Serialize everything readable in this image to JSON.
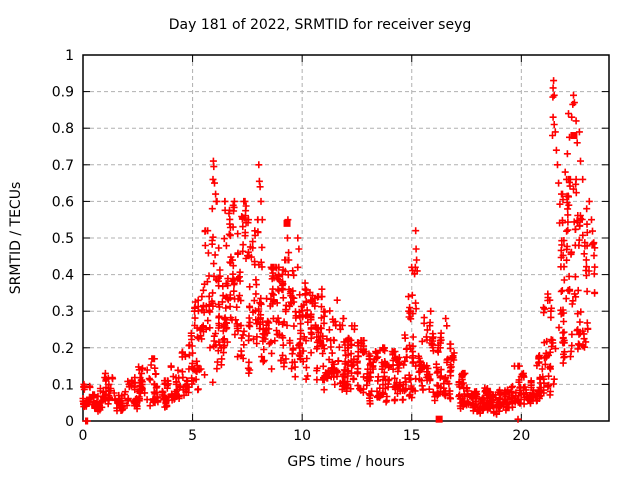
{
  "window": {
    "background": "#ffffff",
    "foreground": "#000000"
  },
  "chart_data": {
    "type": "scatter",
    "title": "Day 181 of 2022, SRMTID for receiver seyg",
    "xlabel": "GPS time / hours",
    "ylabel": "SRMTID / TECUs",
    "xlim": [
      0,
      24
    ],
    "ylim": [
      0,
      1
    ],
    "xticks": [
      0,
      5,
      10,
      15,
      20
    ],
    "xtick_labels": [
      "0",
      "5",
      "10",
      "15",
      "20"
    ],
    "yticks": [
      0,
      0.1,
      0.2,
      0.3,
      0.4,
      0.5,
      0.6,
      0.7,
      0.8,
      0.9,
      1
    ],
    "ytick_labels": [
      "0",
      "0.1",
      "0.2",
      "0.3",
      "0.4",
      "0.5",
      "0.6",
      "0.7",
      "0.8",
      "0.9",
      "1"
    ],
    "grid": true,
    "legend": "none",
    "marker": "plus",
    "marker_color": "#ff0000",
    "grid_color": "#b0b0b0",
    "bins_format": [
      "hour_start",
      "hour_end",
      "count",
      "y_min",
      "y_max",
      "skew_toward_min"
    ],
    "bins": [
      [
        0.0,
        0.5,
        30,
        0.04,
        0.1,
        1.5
      ],
      [
        0.5,
        1.0,
        30,
        0.03,
        0.09,
        1.5
      ],
      [
        1.0,
        1.5,
        30,
        0.05,
        0.13,
        1.5
      ],
      [
        1.5,
        2.0,
        28,
        0.03,
        0.08,
        1.5
      ],
      [
        2.0,
        2.5,
        30,
        0.04,
        0.12,
        1.5
      ],
      [
        2.5,
        3.0,
        30,
        0.05,
        0.15,
        1.5
      ],
      [
        3.0,
        3.5,
        30,
        0.05,
        0.17,
        1.8
      ],
      [
        3.5,
        4.0,
        28,
        0.04,
        0.11,
        1.5
      ],
      [
        4.0,
        4.5,
        30,
        0.06,
        0.15,
        1.5
      ],
      [
        4.5,
        5.0,
        32,
        0.07,
        0.24,
        1.6
      ],
      [
        5.0,
        5.5,
        34,
        0.1,
        0.34,
        1.4
      ],
      [
        5.5,
        6.0,
        36,
        0.12,
        0.52,
        1.5
      ],
      [
        6.0,
        6.5,
        46,
        0.16,
        0.6,
        1.2
      ],
      [
        6.5,
        7.0,
        46,
        0.22,
        0.6,
        1.1
      ],
      [
        7.0,
        7.5,
        42,
        0.18,
        0.6,
        1.3
      ],
      [
        7.5,
        8.0,
        42,
        0.16,
        0.55,
        1.3
      ],
      [
        8.0,
        8.5,
        40,
        0.15,
        0.48,
        1.2
      ],
      [
        8.5,
        9.0,
        40,
        0.13,
        0.42,
        1.2
      ],
      [
        9.0,
        9.5,
        40,
        0.15,
        0.44,
        1.2
      ],
      [
        9.5,
        10.0,
        40,
        0.13,
        0.42,
        1.3
      ],
      [
        10.0,
        10.5,
        40,
        0.12,
        0.38,
        1.3
      ],
      [
        10.5,
        11.0,
        40,
        0.1,
        0.34,
        1.3
      ],
      [
        11.0,
        11.5,
        40,
        0.1,
        0.31,
        1.3
      ],
      [
        11.5,
        12.0,
        38,
        0.09,
        0.28,
        1.3
      ],
      [
        12.0,
        12.5,
        38,
        0.08,
        0.26,
        1.3
      ],
      [
        12.5,
        13.0,
        38,
        0.07,
        0.22,
        1.3
      ],
      [
        13.0,
        13.5,
        36,
        0.05,
        0.19,
        1.3
      ],
      [
        13.5,
        14.0,
        36,
        0.06,
        0.2,
        1.4
      ],
      [
        14.0,
        14.5,
        34,
        0.05,
        0.19,
        1.4
      ],
      [
        14.5,
        15.0,
        34,
        0.06,
        0.3,
        1.6
      ],
      [
        15.0,
        15.5,
        34,
        0.08,
        0.42,
        1.8
      ],
      [
        15.5,
        16.0,
        34,
        0.08,
        0.3,
        1.5
      ],
      [
        16.0,
        16.5,
        34,
        0.06,
        0.24,
        1.5
      ],
      [
        16.5,
        17.0,
        34,
        0.06,
        0.21,
        1.5
      ],
      [
        17.0,
        17.5,
        34,
        0.04,
        0.13,
        1.4
      ],
      [
        17.5,
        18.0,
        36,
        0.03,
        0.1,
        1.4
      ],
      [
        18.0,
        18.5,
        38,
        0.02,
        0.09,
        1.4
      ],
      [
        18.5,
        19.0,
        38,
        0.02,
        0.08,
        1.4
      ],
      [
        19.0,
        19.5,
        38,
        0.03,
        0.09,
        1.4
      ],
      [
        19.5,
        20.0,
        34,
        0.04,
        0.15,
        1.6
      ],
      [
        20.0,
        20.5,
        34,
        0.05,
        0.13,
        1.5
      ],
      [
        20.5,
        21.0,
        34,
        0.06,
        0.18,
        1.5
      ],
      [
        21.0,
        21.5,
        36,
        0.08,
        0.35,
        1.6
      ],
      [
        21.5,
        22.0,
        40,
        0.15,
        0.62,
        1.2
      ],
      [
        22.0,
        22.5,
        44,
        0.2,
        0.66,
        1.2
      ],
      [
        22.5,
        23.0,
        40,
        0.17,
        0.58,
        1.3
      ],
      [
        23.0,
        23.4,
        16,
        0.22,
        0.55,
        1.2
      ]
    ],
    "spikes": [
      [
        5.95,
        0.71
      ],
      [
        5.97,
        0.695
      ],
      [
        5.93,
        0.66
      ],
      [
        6.0,
        0.65
      ],
      [
        6.05,
        0.62
      ],
      [
        5.9,
        0.58
      ],
      [
        8.02,
        0.7
      ],
      [
        8.05,
        0.655
      ],
      [
        8.08,
        0.64
      ],
      [
        8.12,
        0.6
      ],
      [
        8.18,
        0.55
      ],
      [
        9.35,
        0.55
      ],
      [
        9.33,
        0.5
      ],
      [
        9.38,
        0.46
      ],
      [
        9.8,
        0.5
      ],
      [
        9.85,
        0.47
      ],
      [
        10.9,
        0.36
      ],
      [
        11.6,
        0.33
      ],
      [
        14.85,
        0.34
      ],
      [
        14.9,
        0.31
      ],
      [
        15.18,
        0.52
      ],
      [
        15.2,
        0.47
      ],
      [
        15.22,
        0.44
      ],
      [
        15.25,
        0.41
      ],
      [
        16.55,
        0.28
      ],
      [
        16.6,
        0.26
      ],
      [
        19.85,
        0.15
      ],
      [
        21.3,
        0.33
      ],
      [
        21.35,
        0.3
      ],
      [
        21.47,
        0.93
      ],
      [
        21.45,
        0.91
      ],
      [
        21.5,
        0.89
      ],
      [
        21.44,
        0.885
      ],
      [
        22.38,
        0.89
      ],
      [
        22.42,
        0.87
      ],
      [
        22.35,
        0.865
      ],
      [
        22.15,
        0.84
      ],
      [
        22.3,
        0.83
      ],
      [
        22.5,
        0.82
      ],
      [
        21.45,
        0.83
      ],
      [
        21.5,
        0.81
      ],
      [
        22.65,
        0.79
      ],
      [
        21.55,
        0.79
      ],
      [
        21.42,
        0.78
      ],
      [
        22.2,
        0.775
      ],
      [
        22.55,
        0.76
      ],
      [
        21.6,
        0.74
      ],
      [
        22.1,
        0.73
      ],
      [
        22.7,
        0.71
      ],
      [
        21.65,
        0.7
      ],
      [
        22.0,
        0.68
      ],
      [
        22.8,
        0.66
      ],
      [
        21.7,
        0.65
      ],
      [
        23.1,
        0.6
      ],
      [
        23.2,
        0.55
      ]
    ],
    "zero_points": [
      [
        0.13,
        0.0
      ],
      [
        0.2,
        0.0
      ],
      [
        19.85,
        0.005
      ]
    ],
    "square_points": [
      [
        9.31,
        0.54
      ],
      [
        16.25,
        0.005
      ],
      [
        22.4,
        0.78
      ]
    ]
  }
}
